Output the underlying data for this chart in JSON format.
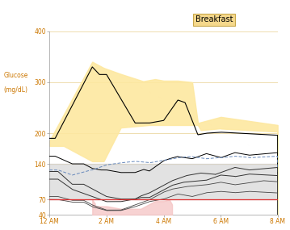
{
  "title": "Breakfast",
  "ylabel_line1": "Glucose",
  "ylabel_line2": "(mg/dL)",
  "xlim": [
    0,
    8
  ],
  "ylim": [
    40,
    400
  ],
  "yticks": [
    40,
    70,
    140,
    200,
    300,
    400
  ],
  "xtick_labels": [
    "12 AM",
    "2 AM",
    "4 AM",
    "6 AM",
    "8 AM"
  ],
  "xtick_positions": [
    0,
    2,
    4,
    6,
    8
  ],
  "bg_color": "#ffffff",
  "gray_band_low": 70,
  "gray_band_high": 140,
  "title_box_color": "#f5d88c",
  "title_box_edge": "#c8a84b",
  "upper_fill_color": "#fde8a0",
  "lower_fill_color": "#f5c0c0",
  "gray_fill_color": "#d0d0d0",
  "red_line_color": "#e03030",
  "orange_label_color": "#cc7700",
  "grid_color": "#e8d090"
}
